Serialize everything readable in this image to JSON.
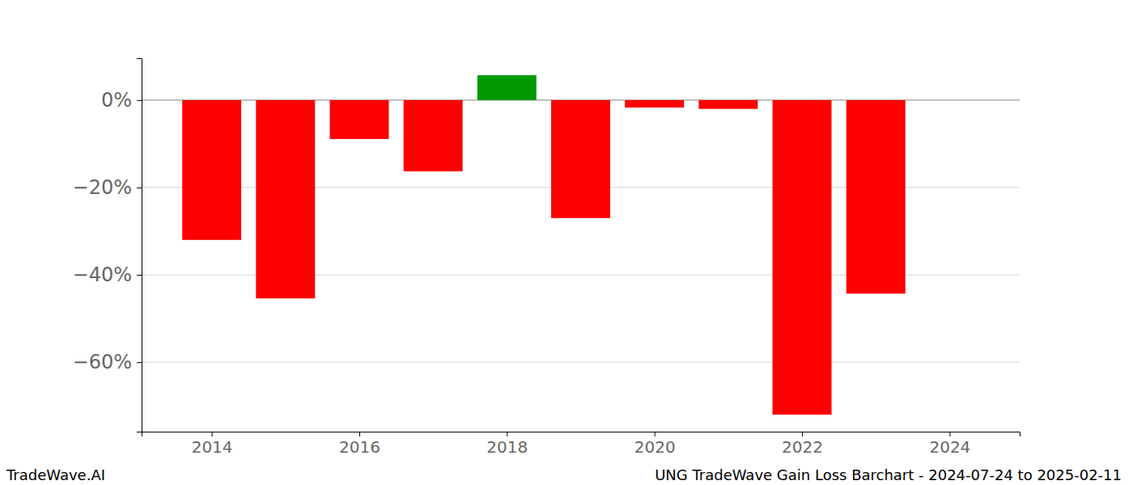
{
  "chart_data": {
    "type": "bar",
    "title": "UNG TradeWave Gain Loss Barchart - 2024-07-24 to 2025-02-11",
    "caption": "TradeWave.AI",
    "x": [
      2014,
      2015,
      2016,
      2017,
      2018,
      2019,
      2020,
      2021,
      2022,
      2023
    ],
    "values": [
      -32.0,
      -45.4,
      -8.9,
      -16.3,
      5.7,
      -27.0,
      -1.7,
      -2.0,
      -72.0,
      -44.3
    ],
    "colors": [
      "#ff0000",
      "#ff0000",
      "#ff0000",
      "#ff0000",
      "#009900",
      "#ff0000",
      "#ff0000",
      "#ff0000",
      "#ff0000",
      "#ff0000"
    ],
    "xlim": [
      2013.05,
      2024.95
    ],
    "xticks": [
      2014,
      2016,
      2018,
      2020,
      2022,
      2024
    ],
    "ylim": [
      -75.9,
      9.6
    ],
    "yticks": [
      {
        "value": 0,
        "label": "0%"
      },
      {
        "value": -20,
        "label": "−20%"
      },
      {
        "value": -40,
        "label": "−40%"
      },
      {
        "value": -60,
        "label": "−60%"
      }
    ],
    "grid": true
  }
}
